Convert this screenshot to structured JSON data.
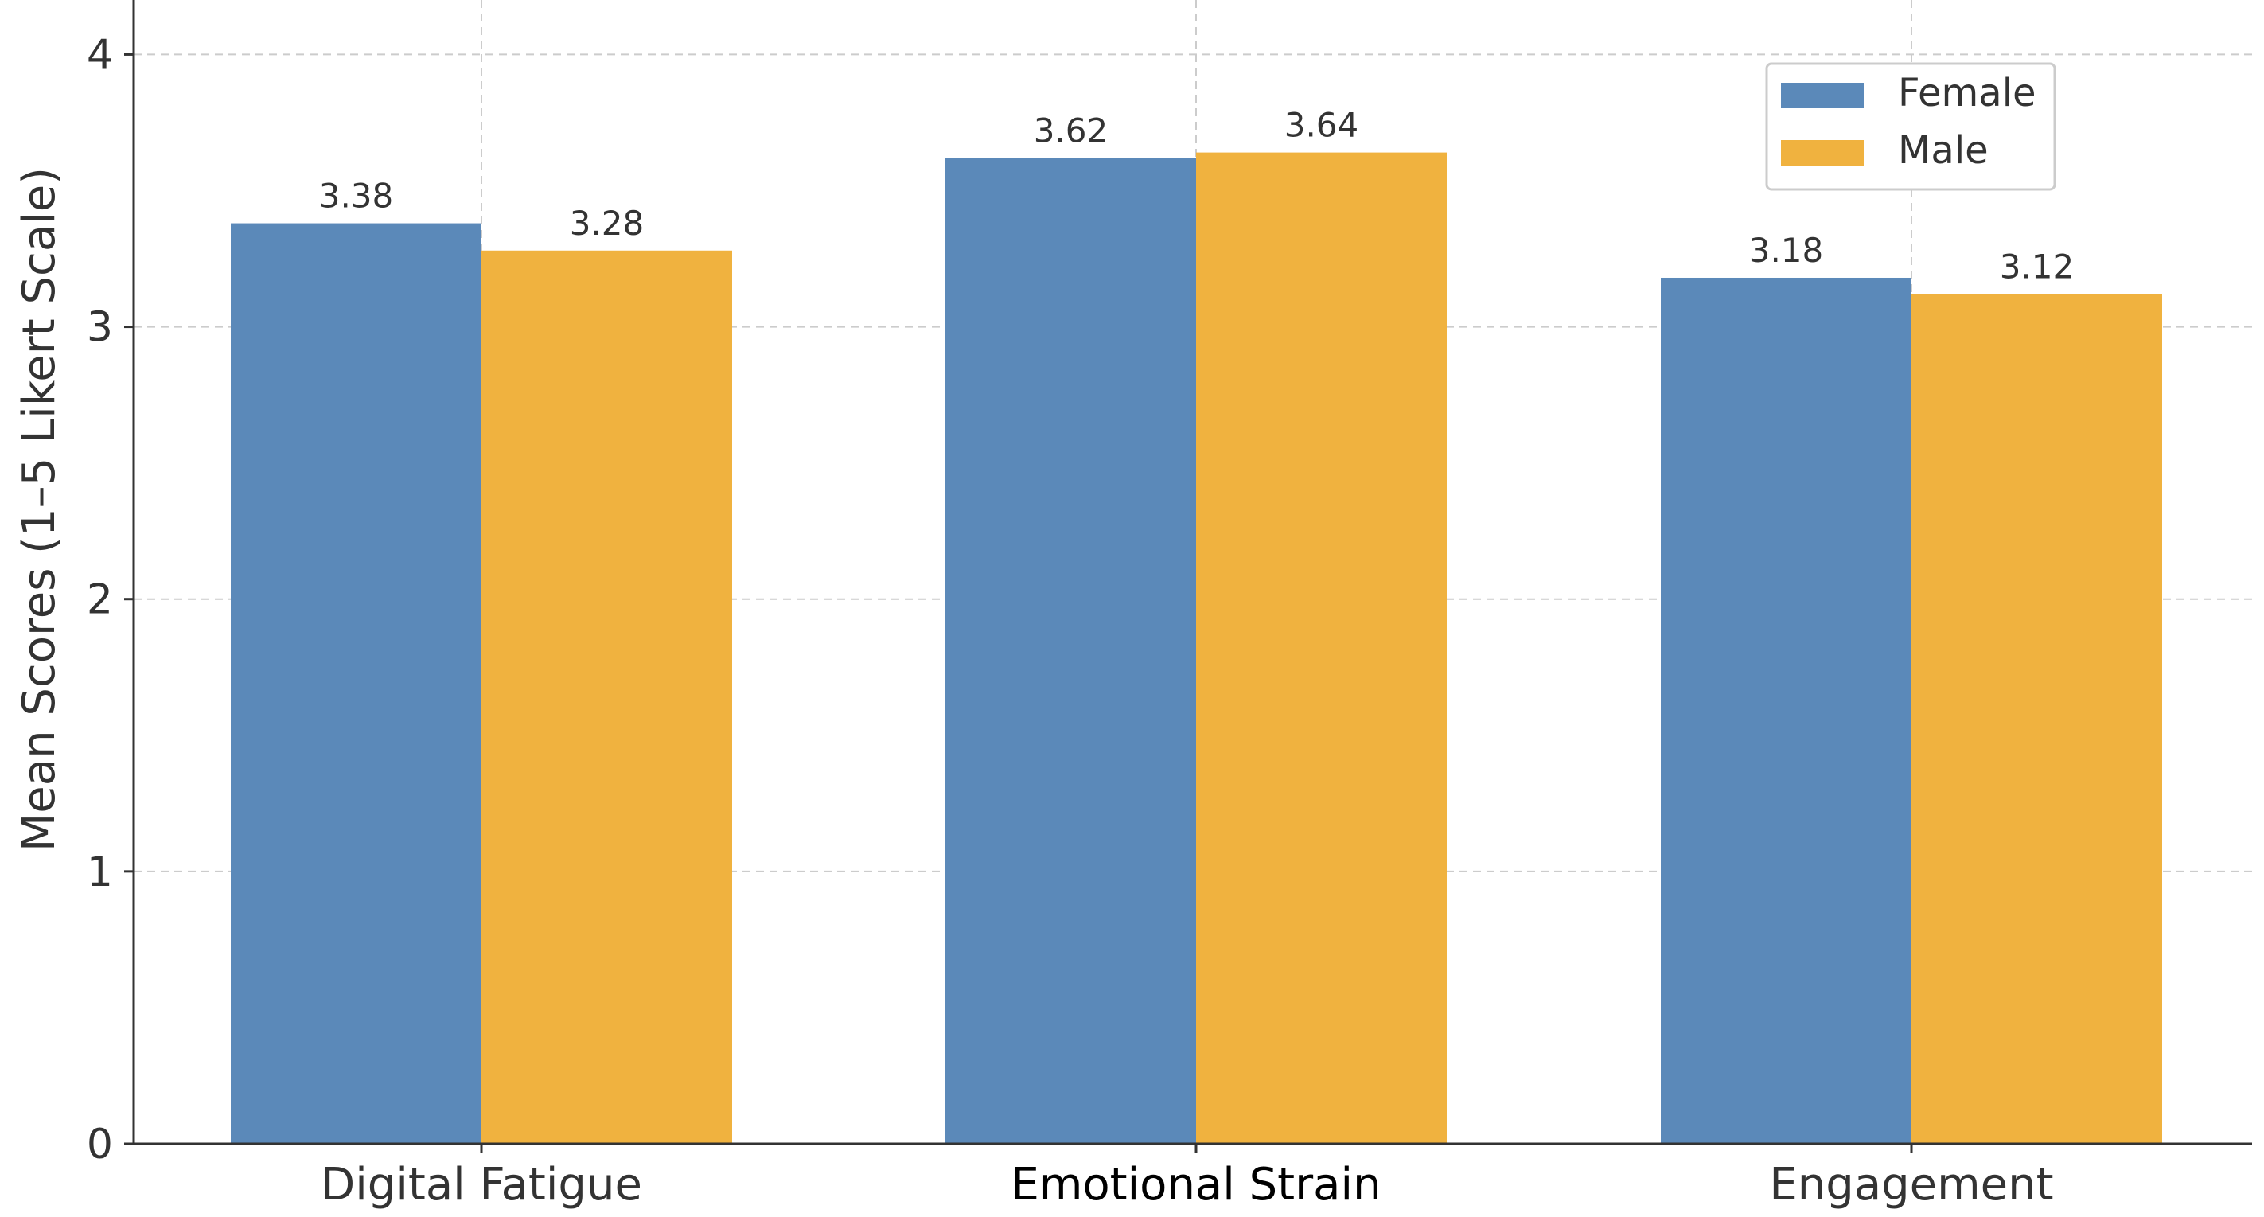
{
  "chart_data": {
    "type": "bar",
    "title": "",
    "xlabel": "",
    "ylabel": "Mean Scores (1–5 Likert Scale)",
    "categories": [
      "Digital Fatigue",
      "Emotional Strain",
      "Engagement"
    ],
    "series": [
      {
        "name": "Female",
        "color": "#5b89b9",
        "values": [
          3.38,
          3.62,
          3.18
        ],
        "labels": [
          "3.38",
          "3.62",
          "3.18"
        ]
      },
      {
        "name": "Male",
        "color": "#f0b23f",
        "values": [
          3.28,
          3.64,
          3.12
        ],
        "labels": [
          "3.28",
          "3.64",
          "3.12"
        ]
      }
    ],
    "ylim": [
      0,
      4.2
    ],
    "yticks": [
      0,
      1,
      2,
      3,
      4
    ],
    "ytick_labels": [
      "0",
      "1",
      "2",
      "3",
      "4"
    ],
    "grid": true,
    "legend": {
      "placement": "top-right"
    }
  }
}
